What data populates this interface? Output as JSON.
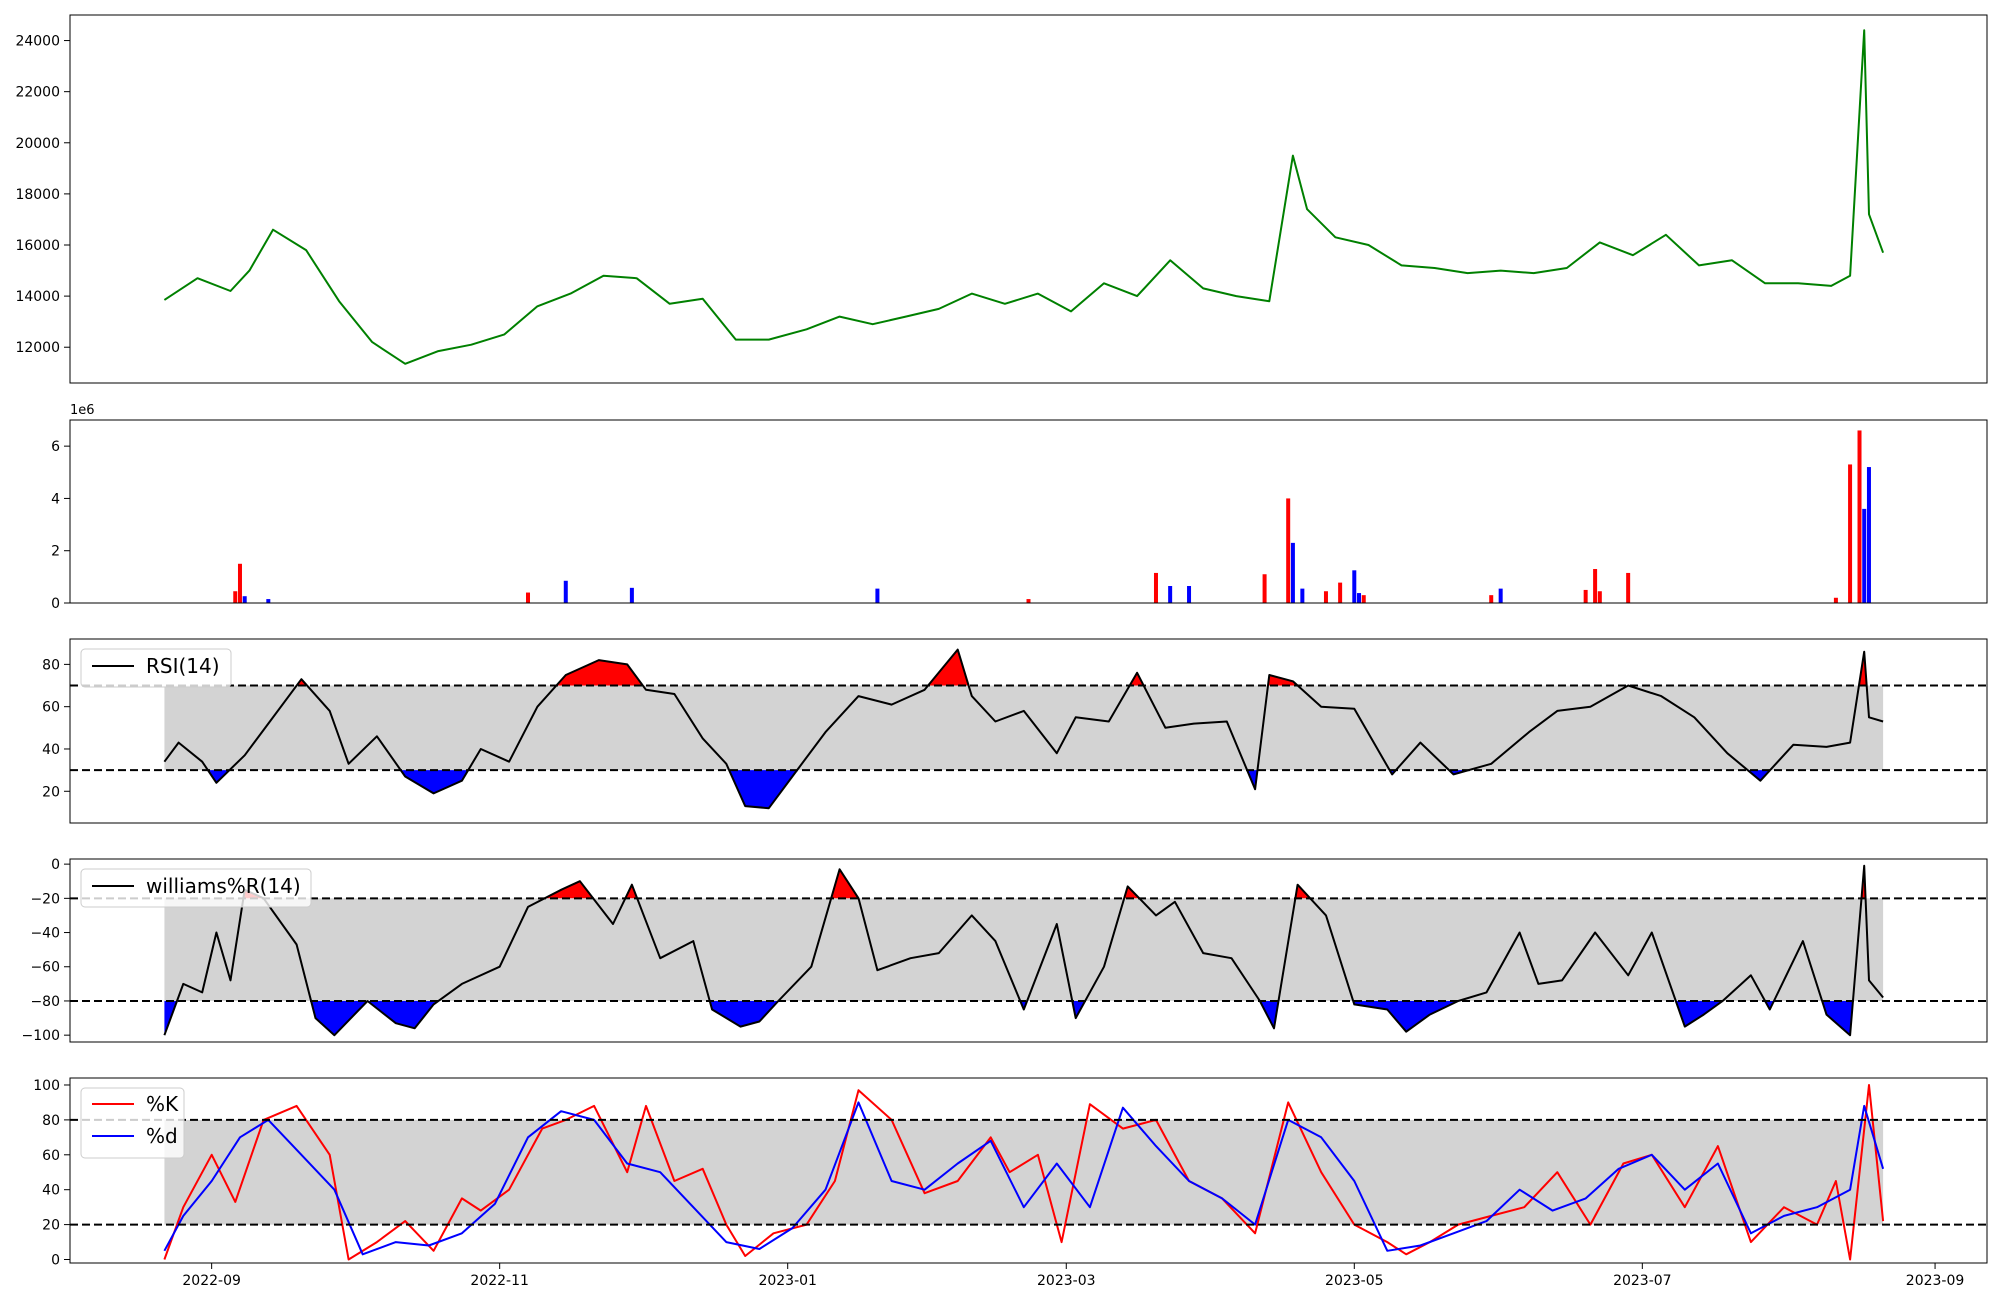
{
  "chart_data": [
    {
      "type": "line",
      "panel": "price",
      "color": "#008000",
      "ylim": [
        10600,
        25000
      ],
      "yticks": [
        12000,
        14000,
        16000,
        18000,
        20000,
        22000,
        24000
      ],
      "tick_labels": [
        "12000",
        "14000",
        "16000",
        "18000",
        "20000",
        "22000",
        "24000"
      ],
      "grid": false,
      "x": [
        "2022-08-22",
        "2022-08-29",
        "2022-09-05",
        "2022-09-09",
        "2022-09-14",
        "2022-09-21",
        "2022-09-28",
        "2022-10-05",
        "2022-10-12",
        "2022-10-19",
        "2022-10-26",
        "2022-11-02",
        "2022-11-09",
        "2022-11-16",
        "2022-11-23",
        "2022-11-30",
        "2022-12-07",
        "2022-12-14",
        "2022-12-21",
        "2022-12-28",
        "2023-01-05",
        "2023-01-12",
        "2023-01-19",
        "2023-01-26",
        "2023-02-02",
        "2023-02-09",
        "2023-02-16",
        "2023-02-23",
        "2023-03-02",
        "2023-03-09",
        "2023-03-16",
        "2023-03-23",
        "2023-03-30",
        "2023-04-06",
        "2023-04-13",
        "2023-04-18",
        "2023-04-21",
        "2023-04-27",
        "2023-05-04",
        "2023-05-11",
        "2023-05-18",
        "2023-05-25",
        "2023-06-01",
        "2023-06-08",
        "2023-06-15",
        "2023-06-22",
        "2023-06-29",
        "2023-07-06",
        "2023-07-13",
        "2023-07-20",
        "2023-07-27",
        "2023-08-03",
        "2023-08-10",
        "2023-08-14",
        "2023-08-17",
        "2023-08-18",
        "2023-08-21"
      ],
      "y": [
        13850,
        14700,
        14200,
        15000,
        16600,
        15800,
        13800,
        12200,
        11350,
        11850,
        12100,
        12500,
        13600,
        14100,
        14800,
        14700,
        13700,
        13900,
        12300,
        12300,
        12700,
        13200,
        12900,
        13200,
        13500,
        14100,
        13700,
        14100,
        13400,
        14500,
        14000,
        15400,
        14300,
        14000,
        13800,
        19500,
        17400,
        16300,
        16000,
        15200,
        15100,
        14900,
        15000,
        14900,
        15100,
        16100,
        15600,
        16400,
        15200,
        15400,
        14500,
        14500,
        14400,
        14800,
        24400,
        17200,
        15700
      ]
    },
    {
      "type": "bar",
      "panel": "volume",
      "exponent_label": "1e6",
      "ylim": [
        0,
        7000000
      ],
      "yticks": [
        0,
        2000000,
        4000000,
        6000000
      ],
      "tick_labels": [
        "0",
        "2",
        "4",
        "6"
      ],
      "colors": {
        "up": "#ff0000",
        "down": "#0000ff"
      },
      "bars": [
        {
          "x": "2022-09-06",
          "value": 450000,
          "dir": "up"
        },
        {
          "x": "2022-09-07",
          "value": 1500000,
          "dir": "up"
        },
        {
          "x": "2022-09-08",
          "value": 260000,
          "dir": "down"
        },
        {
          "x": "2022-09-13",
          "value": 150000,
          "dir": "down"
        },
        {
          "x": "2022-11-07",
          "value": 400000,
          "dir": "up"
        },
        {
          "x": "2022-11-15",
          "value": 850000,
          "dir": "down"
        },
        {
          "x": "2022-11-29",
          "value": 580000,
          "dir": "down"
        },
        {
          "x": "2023-01-20",
          "value": 550000,
          "dir": "down"
        },
        {
          "x": "2023-02-21",
          "value": 150000,
          "dir": "up"
        },
        {
          "x": "2023-03-20",
          "value": 1150000,
          "dir": "up"
        },
        {
          "x": "2023-03-23",
          "value": 650000,
          "dir": "down"
        },
        {
          "x": "2023-03-27",
          "value": 650000,
          "dir": "down"
        },
        {
          "x": "2023-04-12",
          "value": 1100000,
          "dir": "up"
        },
        {
          "x": "2023-04-17",
          "value": 4000000,
          "dir": "up"
        },
        {
          "x": "2023-04-18",
          "value": 2300000,
          "dir": "down"
        },
        {
          "x": "2023-04-20",
          "value": 550000,
          "dir": "down"
        },
        {
          "x": "2023-04-25",
          "value": 450000,
          "dir": "up"
        },
        {
          "x": "2023-04-28",
          "value": 780000,
          "dir": "up"
        },
        {
          "x": "2023-05-01",
          "value": 1250000,
          "dir": "down"
        },
        {
          "x": "2023-05-02",
          "value": 380000,
          "dir": "down"
        },
        {
          "x": "2023-05-03",
          "value": 300000,
          "dir": "up"
        },
        {
          "x": "2023-05-30",
          "value": 300000,
          "dir": "up"
        },
        {
          "x": "2023-06-01",
          "value": 550000,
          "dir": "down"
        },
        {
          "x": "2023-06-19",
          "value": 500000,
          "dir": "up"
        },
        {
          "x": "2023-06-21",
          "value": 1300000,
          "dir": "up"
        },
        {
          "x": "2023-06-22",
          "value": 450000,
          "dir": "up"
        },
        {
          "x": "2023-06-28",
          "value": 1150000,
          "dir": "up"
        },
        {
          "x": "2023-08-11",
          "value": 200000,
          "dir": "up"
        },
        {
          "x": "2023-08-14",
          "value": 5300000,
          "dir": "up"
        },
        {
          "x": "2023-08-16",
          "value": 6600000,
          "dir": "up"
        },
        {
          "x": "2023-08-17",
          "value": 3600000,
          "dir": "down"
        },
        {
          "x": "2023-08-18",
          "value": 5200000,
          "dir": "down"
        }
      ]
    },
    {
      "type": "line",
      "panel": "rsi",
      "legend": [
        "RSI(14)"
      ],
      "legend_position": "top-left",
      "color": "#000000",
      "ylim": [
        5,
        92
      ],
      "yticks": [
        20,
        40,
        60,
        80
      ],
      "tick_labels": [
        "20",
        "40",
        "60",
        "80"
      ],
      "thresholds": [
        70,
        30
      ],
      "band_color": "#d3d3d3",
      "fill_colors": {
        "overbought": "#ff0000",
        "oversold": "#0000ff"
      },
      "x": [
        "2022-08-22",
        "2022-08-25",
        "2022-08-30",
        "2022-09-02",
        "2022-09-08",
        "2022-09-13",
        "2022-09-20",
        "2022-09-26",
        "2022-09-30",
        "2022-10-06",
        "2022-10-12",
        "2022-10-18",
        "2022-10-24",
        "2022-10-28",
        "2022-11-03",
        "2022-11-09",
        "2022-11-15",
        "2022-11-22",
        "2022-11-28",
        "2022-12-02",
        "2022-12-08",
        "2022-12-14",
        "2022-12-19",
        "2022-12-23",
        "2022-12-28",
        "2023-01-03",
        "2023-01-09",
        "2023-01-16",
        "2023-01-23",
        "2023-01-30",
        "2023-02-06",
        "2023-02-09",
        "2023-02-14",
        "2023-02-20",
        "2023-02-27",
        "2023-03-03",
        "2023-03-10",
        "2023-03-16",
        "2023-03-22",
        "2023-03-28",
        "2023-04-04",
        "2023-04-10",
        "2023-04-13",
        "2023-04-18",
        "2023-04-24",
        "2023-05-01",
        "2023-05-09",
        "2023-05-15",
        "2023-05-22",
        "2023-05-30",
        "2023-06-07",
        "2023-06-13",
        "2023-06-20",
        "2023-06-28",
        "2023-07-05",
        "2023-07-12",
        "2023-07-19",
        "2023-07-26",
        "2023-08-02",
        "2023-08-09",
        "2023-08-14",
        "2023-08-17",
        "2023-08-18",
        "2023-08-21"
      ],
      "y": [
        34,
        43,
        34,
        24,
        37,
        52,
        73,
        58,
        33,
        46,
        27,
        19,
        25,
        40,
        34,
        60,
        75,
        82,
        80,
        68,
        66,
        45,
        33,
        13,
        12,
        30,
        48,
        65,
        61,
        68,
        87,
        65,
        53,
        58,
        38,
        55,
        53,
        76,
        50,
        52,
        53,
        21,
        75,
        72,
        60,
        59,
        28,
        43,
        28,
        33,
        48,
        58,
        60,
        70,
        65,
        55,
        38,
        25,
        42,
        41,
        43,
        86,
        55,
        53
      ]
    },
    {
      "type": "line",
      "panel": "williams",
      "legend": [
        "williams%R(14)"
      ],
      "legend_position": "top-left",
      "color": "#000000",
      "ylim": [
        -104,
        3
      ],
      "yticks": [
        -100,
        -80,
        -60,
        -40,
        -20,
        0
      ],
      "tick_labels": [
        "−100",
        "−80",
        "−60",
        "−40",
        "−20",
        "0"
      ],
      "thresholds": [
        -20,
        -80
      ],
      "band_color": "#d3d3d3",
      "fill_colors": {
        "overbought": "#ff0000",
        "oversold": "#0000ff"
      },
      "x": [
        "2022-08-22",
        "2022-08-26",
        "2022-08-30",
        "2022-09-02",
        "2022-09-05",
        "2022-09-08",
        "2022-09-12",
        "2022-09-19",
        "2022-09-23",
        "2022-09-27",
        "2022-10-04",
        "2022-10-10",
        "2022-10-14",
        "2022-10-18",
        "2022-10-24",
        "2022-11-01",
        "2022-11-07",
        "2022-11-14",
        "2022-11-18",
        "2022-11-25",
        "2022-11-29",
        "2022-12-05",
        "2022-12-12",
        "2022-12-16",
        "2022-12-22",
        "2022-12-26",
        "2022-12-30",
        "2023-01-06",
        "2023-01-12",
        "2023-01-16",
        "2023-01-20",
        "2023-01-27",
        "2023-02-02",
        "2023-02-09",
        "2023-02-14",
        "2023-02-20",
        "2023-02-27",
        "2023-03-03",
        "2023-03-09",
        "2023-03-14",
        "2023-03-20",
        "2023-03-24",
        "2023-03-30",
        "2023-04-05",
        "2023-04-11",
        "2023-04-14",
        "2023-04-19",
        "2023-04-25",
        "2023-05-01",
        "2023-05-08",
        "2023-05-12",
        "2023-05-17",
        "2023-05-23",
        "2023-05-29",
        "2023-06-05",
        "2023-06-09",
        "2023-06-14",
        "2023-06-21",
        "2023-06-28",
        "2023-07-03",
        "2023-07-10",
        "2023-07-14",
        "2023-07-18",
        "2023-07-24",
        "2023-07-28",
        "2023-08-04",
        "2023-08-09",
        "2023-08-14",
        "2023-08-17",
        "2023-08-18",
        "2023-08-21"
      ],
      "y": [
        -100,
        -70,
        -75,
        -40,
        -68,
        -15,
        -20,
        -47,
        -90,
        -100,
        -80,
        -93,
        -96,
        -82,
        -70,
        -60,
        -25,
        -15,
        -10,
        -35,
        -12,
        -55,
        -45,
        -85,
        -95,
        -92,
        -80,
        -60,
        -3,
        -20,
        -62,
        -55,
        -52,
        -30,
        -45,
        -85,
        -35,
        -90,
        -60,
        -13,
        -30,
        -22,
        -52,
        -55,
        -80,
        -96,
        -12,
        -30,
        -82,
        -85,
        -98,
        -88,
        -80,
        -75,
        -40,
        -70,
        -68,
        -40,
        -65,
        -40,
        -95,
        -88,
        -80,
        -65,
        -85,
        -45,
        -88,
        -100,
        -1,
        -68,
        -78
      ]
    },
    {
      "type": "line",
      "panel": "stochastic",
      "legend": [
        "%K",
        "%d"
      ],
      "legend_position": "top-left",
      "ylim": [
        -2,
        104
      ],
      "yticks": [
        0,
        20,
        40,
        60,
        80,
        100
      ],
      "tick_labels": [
        "0",
        "20",
        "40",
        "60",
        "80",
        "100"
      ],
      "thresholds": [
        80,
        20
      ],
      "band_color": "#d3d3d3",
      "series": [
        {
          "name": "%K",
          "color": "#ff0000",
          "x": [
            "2022-08-22",
            "2022-08-26",
            "2022-09-01",
            "2022-09-06",
            "2022-09-12",
            "2022-09-19",
            "2022-09-26",
            "2022-09-30",
            "2022-10-06",
            "2022-10-12",
            "2022-10-18",
            "2022-10-24",
            "2022-10-28",
            "2022-11-03",
            "2022-11-10",
            "2022-11-15",
            "2022-11-21",
            "2022-11-28",
            "2022-12-02",
            "2022-12-08",
            "2022-12-14",
            "2022-12-19",
            "2022-12-23",
            "2022-12-29",
            "2023-01-05",
            "2023-01-11",
            "2023-01-16",
            "2023-01-23",
            "2023-01-30",
            "2023-02-06",
            "2023-02-13",
            "2023-02-17",
            "2023-02-23",
            "2023-02-28",
            "2023-03-06",
            "2023-03-13",
            "2023-03-20",
            "2023-03-27",
            "2023-04-03",
            "2023-04-10",
            "2023-04-17",
            "2023-04-24",
            "2023-05-01",
            "2023-05-08",
            "2023-05-12",
            "2023-05-17",
            "2023-05-23",
            "2023-05-30",
            "2023-06-06",
            "2023-06-13",
            "2023-06-20",
            "2023-06-27",
            "2023-07-03",
            "2023-07-10",
            "2023-07-17",
            "2023-07-24",
            "2023-07-31",
            "2023-08-07",
            "2023-08-11",
            "2023-08-14",
            "2023-08-18",
            "2023-08-21"
          ],
          "y": [
            0,
            30,
            60,
            33,
            80,
            88,
            60,
            0,
            10,
            22,
            5,
            35,
            28,
            40,
            75,
            80,
            88,
            50,
            88,
            45,
            52,
            20,
            2,
            15,
            20,
            45,
            97,
            80,
            38,
            45,
            70,
            50,
            60,
            10,
            89,
            75,
            80,
            45,
            35,
            15,
            90,
            50,
            20,
            10,
            3,
            10,
            20,
            25,
            30,
            50,
            20,
            55,
            60,
            30,
            65,
            10,
            30,
            20,
            45,
            0,
            100,
            22
          ]
        },
        {
          "name": "%d",
          "color": "#0000ff",
          "x": [
            "2022-08-22",
            "2022-08-26",
            "2022-09-01",
            "2022-09-07",
            "2022-09-13",
            "2022-09-20",
            "2022-09-27",
            "2022-10-03",
            "2022-10-10",
            "2022-10-17",
            "2022-10-24",
            "2022-10-31",
            "2022-11-07",
            "2022-11-14",
            "2022-11-21",
            "2022-11-28",
            "2022-12-05",
            "2022-12-12",
            "2022-12-19",
            "2022-12-26",
            "2023-01-02",
            "2023-01-09",
            "2023-01-16",
            "2023-01-23",
            "2023-01-30",
            "2023-02-06",
            "2023-02-13",
            "2023-02-20",
            "2023-02-27",
            "2023-03-06",
            "2023-03-13",
            "2023-03-20",
            "2023-03-27",
            "2023-04-03",
            "2023-04-10",
            "2023-04-17",
            "2023-04-24",
            "2023-05-01",
            "2023-05-08",
            "2023-05-15",
            "2023-05-22",
            "2023-05-29",
            "2023-06-05",
            "2023-06-12",
            "2023-06-19",
            "2023-06-26",
            "2023-07-03",
            "2023-07-10",
            "2023-07-17",
            "2023-07-24",
            "2023-07-31",
            "2023-08-07",
            "2023-08-14",
            "2023-08-17",
            "2023-08-21"
          ],
          "y": [
            5,
            25,
            45,
            70,
            80,
            60,
            40,
            3,
            10,
            8,
            15,
            32,
            70,
            85,
            80,
            55,
            50,
            30,
            10,
            6,
            18,
            40,
            90,
            45,
            40,
            55,
            68,
            30,
            55,
            30,
            87,
            65,
            45,
            35,
            20,
            80,
            70,
            45,
            5,
            8,
            15,
            22,
            40,
            28,
            35,
            52,
            60,
            40,
            55,
            15,
            25,
            30,
            40,
            88,
            52
          ]
        }
      ]
    }
  ],
  "x_axis": {
    "ticks": [
      "2022-09",
      "2022-11",
      "2023-01",
      "2023-03",
      "2023-05",
      "2023-07",
      "2023-09"
    ],
    "tick_dates": [
      "2022-09-01",
      "2022-11-01",
      "2023-01-01",
      "2023-03-01",
      "2023-05-01",
      "2023-07-01",
      "2023-09-01"
    ],
    "range": [
      "2022-08-02",
      "2023-09-12"
    ]
  }
}
